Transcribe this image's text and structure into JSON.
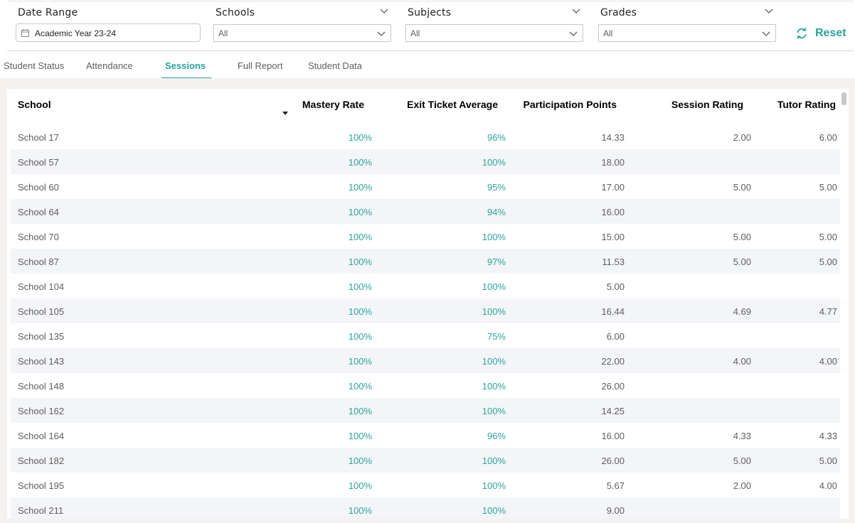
{
  "filters": {
    "date_range": {
      "title": "Date Range",
      "value": "Academic Year 23-24"
    },
    "schools": {
      "title": "Schools",
      "value": "All"
    },
    "subjects": {
      "title": "Subjects",
      "value": "All"
    },
    "grades": {
      "title": "Grades",
      "value": "All"
    },
    "reset_label": "Reset",
    "accent_color": "#29a59d"
  },
  "tabs": [
    {
      "label": "Student Status",
      "active": false
    },
    {
      "label": "Attendance",
      "active": false
    },
    {
      "label": "Sessions",
      "active": true
    },
    {
      "label": "Full Report",
      "active": false
    },
    {
      "label": "Student Data",
      "active": false
    }
  ],
  "table": {
    "columns": [
      "School",
      "Mastery Rate",
      "Exit Ticket Average",
      "Participation Points",
      "Session Rating",
      "Tutor Rating"
    ],
    "sorted_column": "School",
    "rows": [
      {
        "school": "School 17",
        "mastery": "100%",
        "exit": "96%",
        "participation": "14.33",
        "session_rating": "2.00",
        "tutor_rating": "6.00"
      },
      {
        "school": "School 57",
        "mastery": "100%",
        "exit": "100%",
        "participation": "18.00",
        "session_rating": "",
        "tutor_rating": ""
      },
      {
        "school": "School 60",
        "mastery": "100%",
        "exit": "95%",
        "participation": "17.00",
        "session_rating": "5.00",
        "tutor_rating": "5.00"
      },
      {
        "school": "School 64",
        "mastery": "100%",
        "exit": "94%",
        "participation": "16.00",
        "session_rating": "",
        "tutor_rating": ""
      },
      {
        "school": "School 70",
        "mastery": "100%",
        "exit": "100%",
        "participation": "15.00",
        "session_rating": "5.00",
        "tutor_rating": "5.00"
      },
      {
        "school": "School 87",
        "mastery": "100%",
        "exit": "97%",
        "participation": "11.53",
        "session_rating": "5.00",
        "tutor_rating": "5.00"
      },
      {
        "school": "School 104",
        "mastery": "100%",
        "exit": "100%",
        "participation": "5.00",
        "session_rating": "",
        "tutor_rating": ""
      },
      {
        "school": "School 105",
        "mastery": "100%",
        "exit": "100%",
        "participation": "16.44",
        "session_rating": "4.69",
        "tutor_rating": "4.77"
      },
      {
        "school": "School 135",
        "mastery": "100%",
        "exit": "75%",
        "participation": "6.00",
        "session_rating": "",
        "tutor_rating": ""
      },
      {
        "school": "School 143",
        "mastery": "100%",
        "exit": "100%",
        "participation": "22.00",
        "session_rating": "4.00",
        "tutor_rating": "4.00"
      },
      {
        "school": "School 148",
        "mastery": "100%",
        "exit": "100%",
        "participation": "26.00",
        "session_rating": "",
        "tutor_rating": ""
      },
      {
        "school": "School 162",
        "mastery": "100%",
        "exit": "100%",
        "participation": "14.25",
        "session_rating": "",
        "tutor_rating": ""
      },
      {
        "school": "School 164",
        "mastery": "100%",
        "exit": "96%",
        "participation": "16.00",
        "session_rating": "4.33",
        "tutor_rating": "4.33"
      },
      {
        "school": "School 182",
        "mastery": "100%",
        "exit": "100%",
        "participation": "26.00",
        "session_rating": "5.00",
        "tutor_rating": "5.00"
      },
      {
        "school": "School 195",
        "mastery": "100%",
        "exit": "100%",
        "participation": "5.67",
        "session_rating": "2.00",
        "tutor_rating": "4.00"
      },
      {
        "school": "School 211",
        "mastery": "100%",
        "exit": "100%",
        "participation": "9.00",
        "session_rating": "",
        "tutor_rating": ""
      }
    ]
  }
}
